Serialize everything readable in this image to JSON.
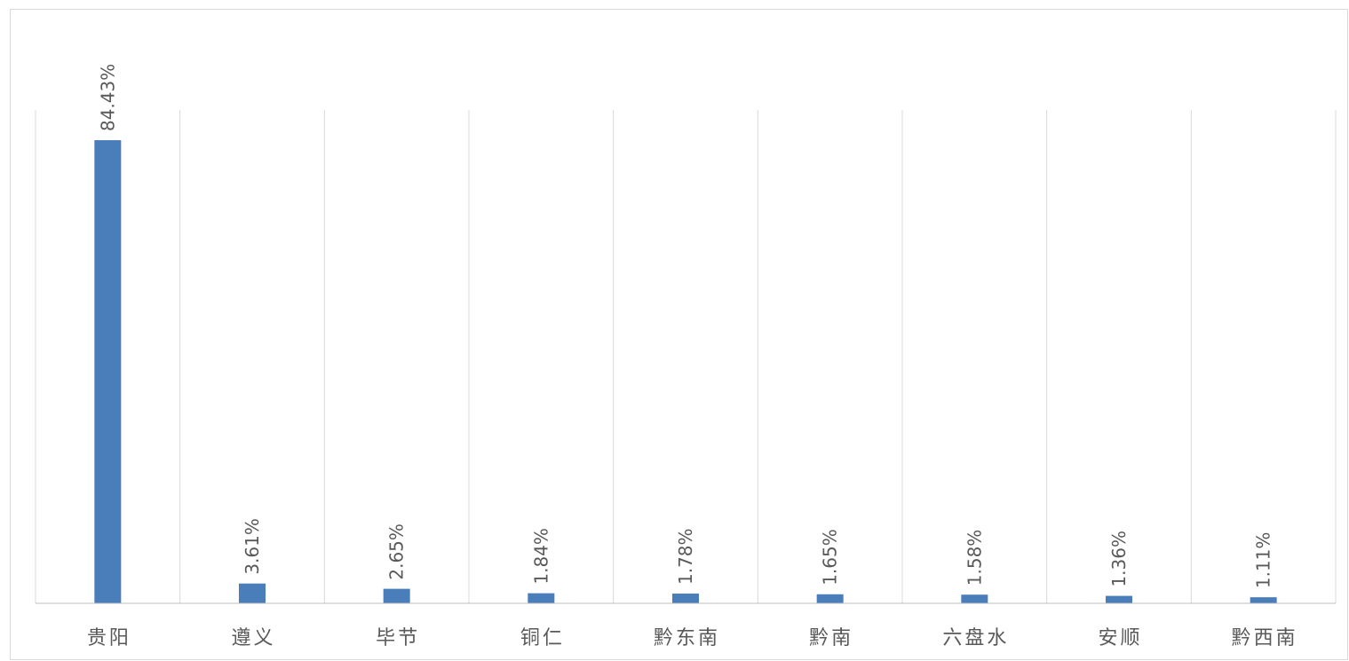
{
  "chart_data": {
    "type": "bar",
    "title": "",
    "xlabel": "",
    "ylabel": "",
    "categories": [
      "贵阳",
      "遵义",
      "毕节",
      "铜仁",
      "黔东南",
      "黔南",
      "六盘水",
      "安顺",
      "黔西南"
    ],
    "values": [
      84.43,
      3.61,
      2.65,
      1.84,
      1.78,
      1.65,
      1.58,
      1.36,
      1.11
    ],
    "data_labels": [
      "84.43%",
      "3.61%",
      "2.65%",
      "1.84%",
      "1.78%",
      "1.65%",
      "1.58%",
      "1.36%",
      "1.11%"
    ],
    "ylim": [
      0,
      100
    ],
    "grid": "vertical category separators",
    "legend": "none",
    "colors": {
      "bar": "#4a7ebb",
      "gridline": "#d9d9d9",
      "axis": "#bfbfbf",
      "text": "#595959"
    }
  }
}
